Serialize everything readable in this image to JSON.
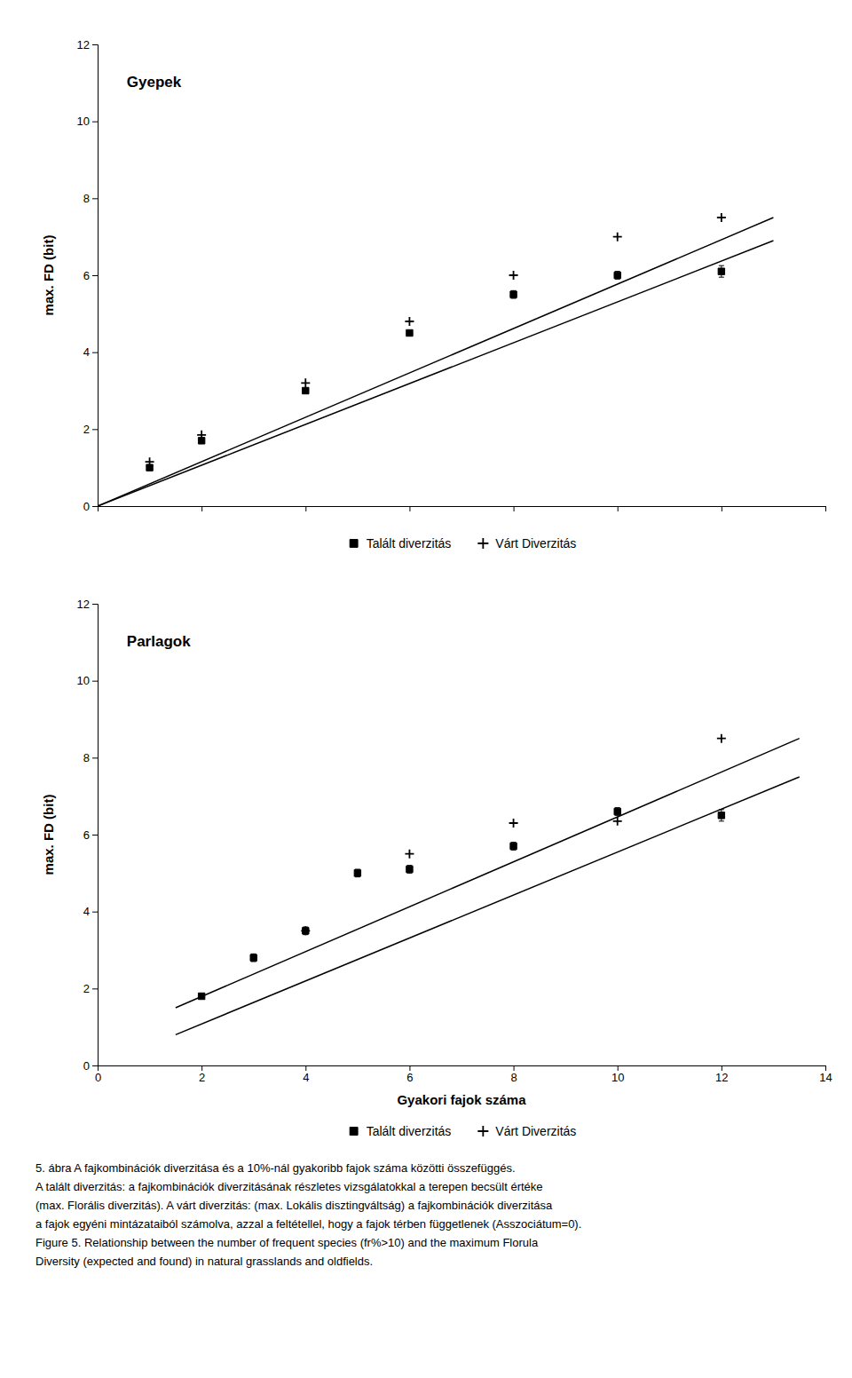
{
  "chart_data": [
    {
      "type": "scatter",
      "title": "Gyepek",
      "ylabel": "max. FD (bit)",
      "xlim": [
        0,
        14
      ],
      "ylim": [
        0,
        12
      ],
      "xticks": [
        0,
        2,
        4,
        6,
        8,
        10,
        12,
        14
      ],
      "yticks": [
        0,
        2,
        4,
        6,
        8,
        10,
        12
      ],
      "tick_labels": "y",
      "grid": false,
      "legend": "bottom",
      "series": [
        {
          "type": "line",
          "color": "#000000",
          "line_style": "solid",
          "x": [
            0,
            13
          ],
          "values": [
            0,
            7.5
          ]
        },
        {
          "type": "line",
          "color": "#000000",
          "line_style": "solid",
          "x": [
            0,
            13
          ],
          "values": [
            0,
            6.9
          ]
        },
        {
          "name": "Talált diverzitás",
          "type": "scatter",
          "marker": "square",
          "color": "#000000",
          "x": [
            1,
            2,
            4,
            6,
            8,
            10,
            12
          ],
          "values": [
            1.0,
            1.7,
            3.0,
            4.5,
            5.5,
            6.0,
            6.1
          ],
          "errors": [
            0.05,
            0.05,
            0.05,
            0.05,
            0.1,
            0.1,
            0.15
          ]
        },
        {
          "name": "Várt Diverzitás",
          "type": "scatter",
          "marker": "plus",
          "color": "#000000",
          "x": [
            1,
            2,
            4,
            6,
            8,
            10,
            12
          ],
          "values": [
            1.15,
            1.85,
            3.2,
            4.8,
            6.0,
            7.0,
            7.5
          ]
        }
      ]
    },
    {
      "type": "scatter",
      "title": "Parlagok",
      "xlabel": "Gyakori fajok száma",
      "ylabel": "max. FD (bit)",
      "xlim": [
        0,
        14
      ],
      "ylim": [
        0,
        12
      ],
      "xticks": [
        0,
        2,
        4,
        6,
        8,
        10,
        12,
        14
      ],
      "yticks": [
        0,
        2,
        4,
        6,
        8,
        10,
        12
      ],
      "grid": false,
      "legend": "bottom",
      "series": [
        {
          "type": "line",
          "color": "#000000",
          "line_style": "solid",
          "x": [
            1.5,
            13.5
          ],
          "values": [
            1.5,
            8.5
          ]
        },
        {
          "type": "line",
          "color": "#000000",
          "line_style": "solid",
          "x": [
            1.5,
            13.5
          ],
          "values": [
            0.8,
            7.5
          ]
        },
        {
          "name": "Talált diverzitás",
          "type": "scatter",
          "marker": "square",
          "color": "#000000",
          "x": [
            2,
            3,
            4,
            5,
            6,
            8,
            10,
            12
          ],
          "values": [
            1.8,
            2.8,
            3.5,
            5.0,
            5.1,
            5.7,
            6.6,
            6.5
          ],
          "errors": [
            0.05,
            0.1,
            0.1,
            0.1,
            0.1,
            0.1,
            0.1,
            0.15
          ]
        },
        {
          "name": "Várt Diverzitás",
          "type": "scatter",
          "marker": "plus",
          "color": "#000000",
          "x": [
            4,
            6,
            8,
            10,
            12
          ],
          "values": [
            3.5,
            5.5,
            6.3,
            6.35,
            8.5
          ]
        }
      ],
      "annotations": [
        "5. ábra A fajkombinációk diverzitása és a 10%-nál gyakoribb fajok száma közötti összefüggés.",
        "A talált diverzitás: a fajkombinációk diverzitásának részletes vizsgálatokkal a terepen becsült értéke",
        "(max. Florális diverzitás). A várt diverzitás: (max. Lokális disztingváltság) a fajkombinációk diverzitása",
        "a fajok egyéni mintázataiból számolva, azzal a feltétellel, hogy a fajok térben függetlenek (Asszociátum=0).",
        "Figure 5. Relationship between the number of frequent species (fr%>10) and the maximum Florula",
        "Diversity (expected and found) in natural grasslands and oldfields."
      ]
    }
  ]
}
